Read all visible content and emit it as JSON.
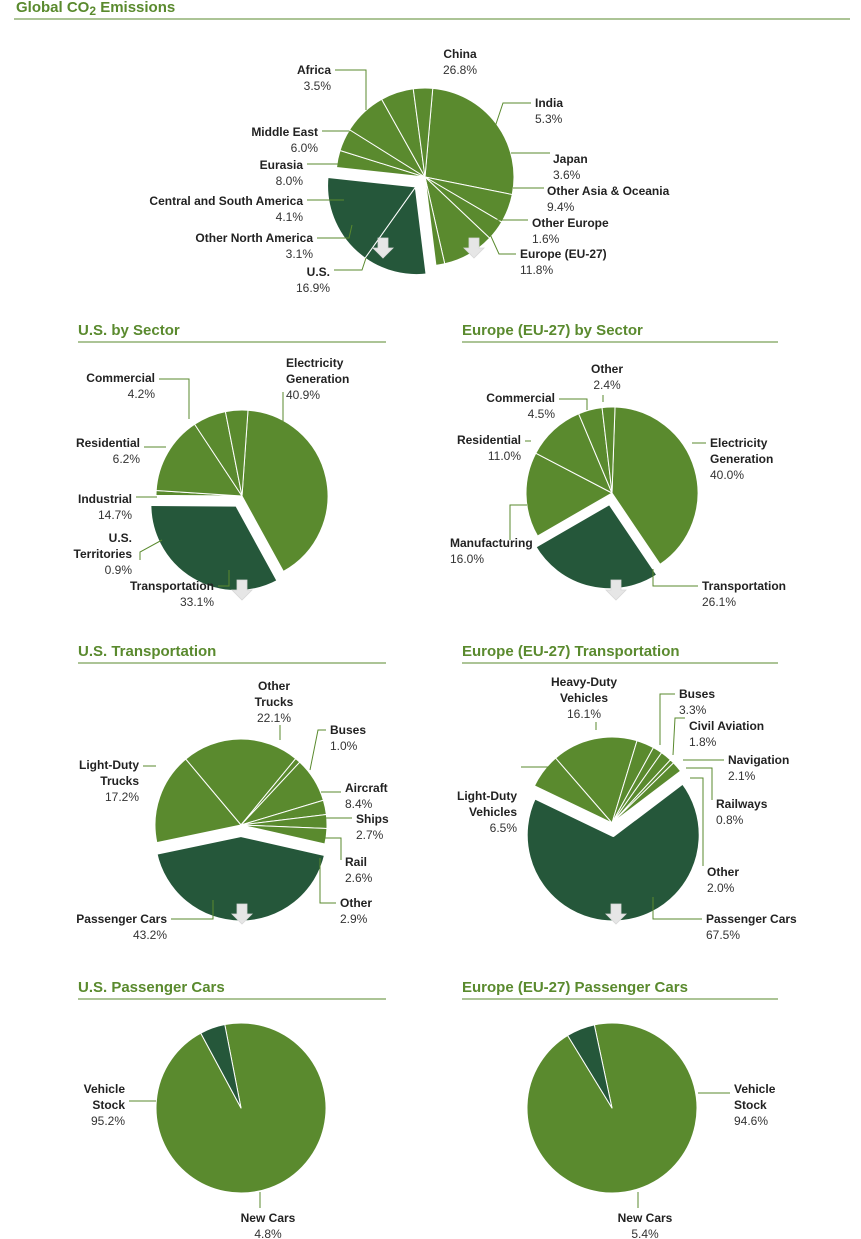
{
  "colors": {
    "accent": "#5a8a2e",
    "slice_light": "#5a8a2e",
    "slice_dark": "#25573a",
    "rule": "#5a8a2e",
    "arrow": "#e6e6e6"
  },
  "main_title": {
    "pre": "Global CO",
    "sub": "2",
    "post": " Emissions"
  },
  "chart_data": [
    {
      "type": "pie",
      "title": "",
      "slices": [
        {
          "label": "China",
          "value": 26.8,
          "display": "26.8%",
          "highlight": false
        },
        {
          "label": "India",
          "value": 5.3,
          "display": "5.3%",
          "highlight": false
        },
        {
          "label": "Japan",
          "value": 3.6,
          "display": "3.6%",
          "highlight": false
        },
        {
          "label": "Other Asia & Oceania",
          "value": 9.4,
          "display": "9.4%",
          "highlight": false
        },
        {
          "label": "Other Europe",
          "value": 1.6,
          "display": "1.6%",
          "highlight": false
        },
        {
          "label": "Europe (EU-27)",
          "value": 11.8,
          "display": "11.8%",
          "highlight": true
        },
        {
          "label": "U.S.",
          "value": 16.9,
          "display": "16.9%",
          "highlight": true
        },
        {
          "label": "Other North America",
          "value": 3.1,
          "display": "3.1%",
          "highlight": false
        },
        {
          "label": "Central and South America",
          "value": 4.1,
          "display": "4.1%",
          "highlight": false
        },
        {
          "label": "Eurasia",
          "value": 8.0,
          "display": "8.0%",
          "highlight": false
        },
        {
          "label": "Middle East",
          "value": 6.0,
          "display": "6.0%",
          "highlight": false
        },
        {
          "label": "Africa",
          "value": 3.5,
          "display": "3.5%",
          "highlight": false
        }
      ]
    },
    {
      "type": "pie",
      "title": "U.S. by Sector",
      "slices": [
        {
          "label": "Electricity\nGeneration",
          "value": 40.9,
          "display": "40.9%",
          "highlight": false
        },
        {
          "label": "Transportation",
          "value": 33.1,
          "display": "33.1%",
          "highlight": true
        },
        {
          "label": "U.S.\nTerritories",
          "value": 0.9,
          "display": "0.9%",
          "highlight": false
        },
        {
          "label": "Industrial",
          "value": 14.7,
          "display": "14.7%",
          "highlight": false
        },
        {
          "label": "Residential",
          "value": 6.2,
          "display": "6.2%",
          "highlight": false
        },
        {
          "label": "Commercial",
          "value": 4.2,
          "display": "4.2%",
          "highlight": false
        }
      ]
    },
    {
      "type": "pie",
      "title": "Europe (EU-27) by Sector",
      "slices": [
        {
          "label": "Electricity\nGeneration",
          "value": 40.0,
          "display": "40.0%",
          "highlight": false
        },
        {
          "label": "Transportation",
          "value": 26.1,
          "display": "26.1%",
          "highlight": true
        },
        {
          "label": "Manufacturing",
          "value": 16.0,
          "display": "16.0%",
          "highlight": false
        },
        {
          "label": "Residential",
          "value": 11.0,
          "display": "11.0%",
          "highlight": false
        },
        {
          "label": "Commercial",
          "value": 4.5,
          "display": "4.5%",
          "highlight": false
        },
        {
          "label": "Other",
          "value": 2.4,
          "display": "2.4%",
          "highlight": false
        }
      ]
    },
    {
      "type": "pie",
      "title": "U.S. Transportation",
      "slices": [
        {
          "label": "Other\nTrucks",
          "value": 22.1,
          "display": "22.1%",
          "highlight": false
        },
        {
          "label": "Buses",
          "value": 1.0,
          "display": "1.0%",
          "highlight": false
        },
        {
          "label": "Aircraft",
          "value": 8.4,
          "display": "8.4%",
          "highlight": false
        },
        {
          "label": "Ships",
          "value": 2.7,
          "display": "2.7%",
          "highlight": false
        },
        {
          "label": "Rail",
          "value": 2.6,
          "display": "2.6%",
          "highlight": false
        },
        {
          "label": "Other",
          "value": 2.9,
          "display": "2.9%",
          "highlight": false
        },
        {
          "label": "Passenger Cars",
          "value": 43.2,
          "display": "43.2%",
          "highlight": true
        },
        {
          "label": "Light-Duty\nTrucks",
          "value": 17.2,
          "display": "17.2%",
          "highlight": false
        }
      ]
    },
    {
      "type": "pie",
      "title": "Europe (EU-27) Transportation",
      "slices": [
        {
          "label": "Heavy-Duty\nVehicles",
          "value": 16.1,
          "display": "16.1%",
          "highlight": false
        },
        {
          "label": "Buses",
          "value": 3.3,
          "display": "3.3%",
          "highlight": false
        },
        {
          "label": "Civil Aviation",
          "value": 1.8,
          "display": "1.8%",
          "highlight": false
        },
        {
          "label": "Navigation",
          "value": 2.1,
          "display": "2.1%",
          "highlight": false
        },
        {
          "label": "Railways",
          "value": 0.8,
          "display": "0.8%",
          "highlight": false
        },
        {
          "label": "Other",
          "value": 2.0,
          "display": "2.0%",
          "highlight": false
        },
        {
          "label": "Passenger Cars",
          "value": 67.5,
          "display": "67.5%",
          "highlight": true
        },
        {
          "label": "Light-Duty\nVehicles",
          "value": 6.5,
          "display": "6.5%",
          "highlight": false
        }
      ]
    },
    {
      "type": "pie",
      "title": "U.S. Passenger Cars",
      "slices": [
        {
          "label": "Vehicle\nStock",
          "value": 95.2,
          "display": "95.2%",
          "highlight": false
        },
        {
          "label": "New Cars",
          "value": 4.8,
          "display": "4.8%",
          "highlight": true
        }
      ]
    },
    {
      "type": "pie",
      "title": "Europe (EU-27) Passenger Cars",
      "slices": [
        {
          "label": "Vehicle\nStock",
          "value": 94.6,
          "display": "94.6%",
          "highlight": false
        },
        {
          "label": "New Cars",
          "value": 5.4,
          "display": "5.4%",
          "highlight": true
        }
      ]
    }
  ]
}
